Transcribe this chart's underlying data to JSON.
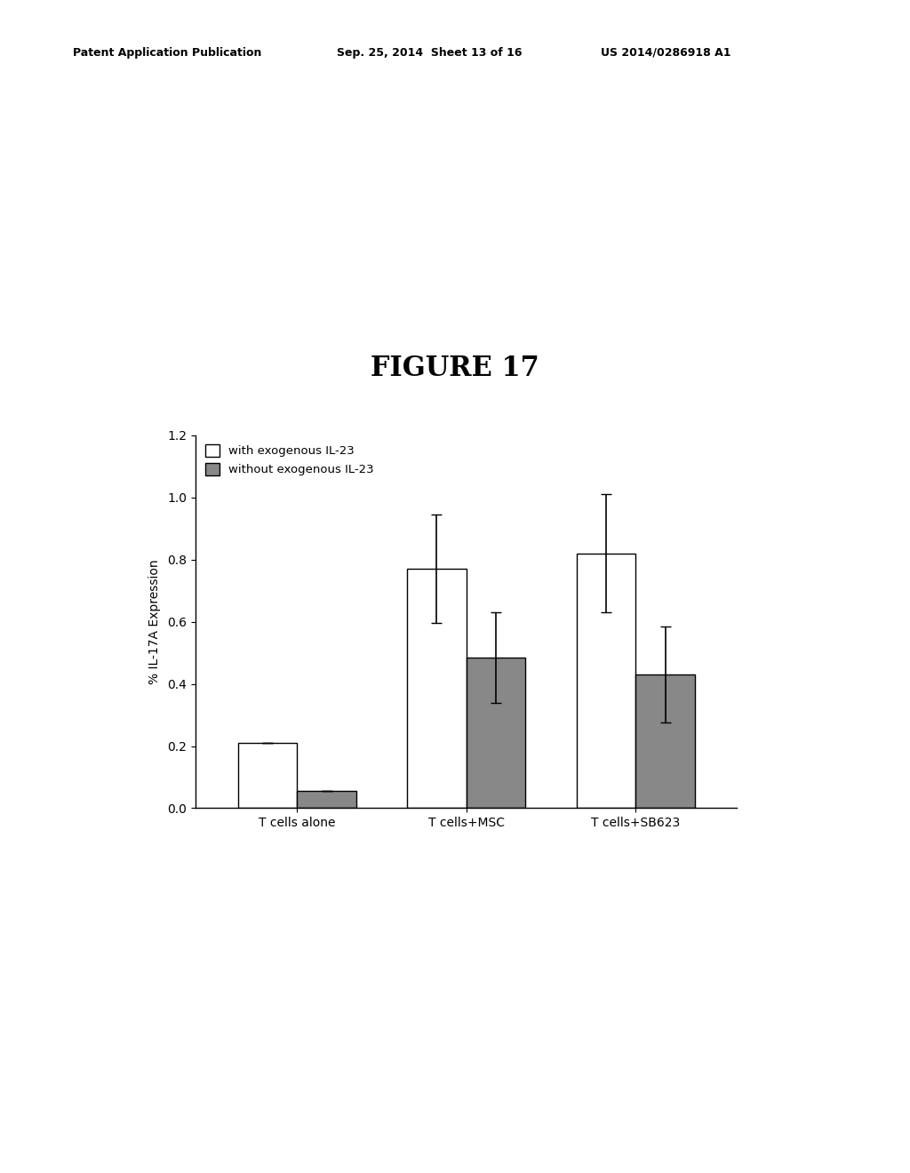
{
  "title": "FIGURE 17",
  "header_left": "Patent Application Publication",
  "header_mid": "Sep. 25, 2014  Sheet 13 of 16",
  "header_right": "US 2014/0286918 A1",
  "categories": [
    "T cells alone",
    "T cells+MSC",
    "T cells+SB623"
  ],
  "with_IL23_values": [
    0.21,
    0.77,
    0.82
  ],
  "without_IL23_values": [
    0.055,
    0.485,
    0.43
  ],
  "with_IL23_errors": [
    0.0,
    0.175,
    0.19
  ],
  "without_IL23_errors": [
    0.0,
    0.145,
    0.155
  ],
  "ylabel": "% IL-17A Expression",
  "ylim": [
    0.0,
    1.2
  ],
  "yticks": [
    0.0,
    0.2,
    0.4,
    0.6,
    0.8,
    1.0,
    1.2
  ],
  "bar_width": 0.35,
  "with_color": "#ffffff",
  "without_color": "#888888",
  "legend_labels": [
    "with exogenous IL-23",
    "without exogenous IL-23"
  ],
  "background_color": "#ffffff"
}
